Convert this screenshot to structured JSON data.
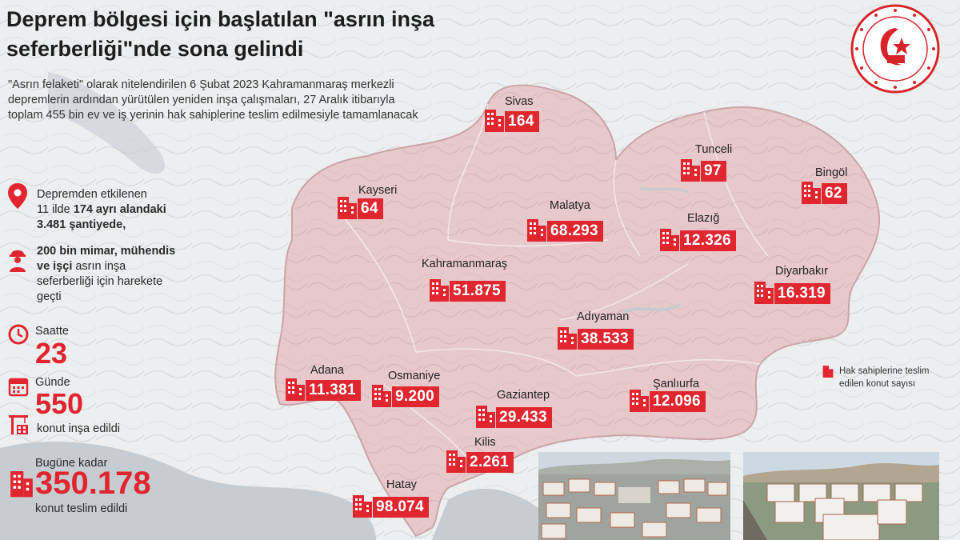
{
  "header": {
    "title": "Deprem bölgesi için başlatılan \"asrın inşa seferberliği\"nde sona gelindi",
    "intro": "\"Asrın felaketi\" olarak nitelendirilen 6 Şubat 2023 Kahramanmaraş merkezli depremlerin ardından yürütülen yeniden inşa çalışmaları, 27 Aralık itibarıyla toplam 455 bin ev ve iş yerinin hak sahiplerine teslim edilmesiyle tamamlanacak"
  },
  "stats": {
    "affected_line1": "Depremden etkilenen",
    "affected_line2_pre": "11 ilde ",
    "affected_line2_bold": "174 ayrı alandaki",
    "affected_line3_bold": "3.481 şantiyede,",
    "workers_bold": "200 bin mimar, mühendis",
    "workers_line2_bold": "ve işçi",
    "workers_line2_rest": " asrın inşa",
    "workers_line3": "seferberliği için harekete",
    "workers_line4": "geçti",
    "hourly_label": "Saatte",
    "hourly_value": "23",
    "daily_label": "Günde",
    "daily_value": "550",
    "built_label": "konut inşa edildi",
    "total_label": "Bugüne kadar",
    "total_value": "350.178",
    "delivered_label": "konut teslim edildi"
  },
  "cities": [
    {
      "name": "Sivas",
      "value": "164"
    },
    {
      "name": "Tunceli",
      "value": "97"
    },
    {
      "name": "Bingöl",
      "value": "62"
    },
    {
      "name": "Kayseri",
      "value": "64"
    },
    {
      "name": "Malatya",
      "value": "68.293"
    },
    {
      "name": "Elazığ",
      "value": "12.326"
    },
    {
      "name": "Kahramanmaraş",
      "value": "51.875"
    },
    {
      "name": "Diyarbakır",
      "value": "16.319"
    },
    {
      "name": "Adıyaman",
      "value": "38.533"
    },
    {
      "name": "Adana",
      "value": "11.381"
    },
    {
      "name": "Osmaniye",
      "value": "9.200"
    },
    {
      "name": "Gaziantep",
      "value": "29.433"
    },
    {
      "name": "Şanlıurfa",
      "value": "12.096"
    },
    {
      "name": "Kilis",
      "value": "2.261"
    },
    {
      "name": "Hatay",
      "value": "98.074"
    }
  ],
  "legend": {
    "text": "Hak sahiplerine teslim edilen konut sayısı"
  },
  "seal": {
    "text": "TÜRKİYE CUMHURİYETİ ÇEVRE, ŞEHİRCİLİK VE İKLİM DEĞİŞİKLİĞİ BAKANLIĞI"
  },
  "colors": {
    "accent": "#e1262f",
    "region_fill": "#e9c9cc",
    "region_stroke": "#c9a3a7",
    "sea": "#c6ccd0",
    "land": "#eef0f1"
  },
  "icons": {
    "location": "location-pin-icon",
    "worker": "worker-icon",
    "clock": "clock-icon",
    "calendar": "calendar-icon",
    "crane": "crane-icon",
    "building": "building-icon"
  }
}
